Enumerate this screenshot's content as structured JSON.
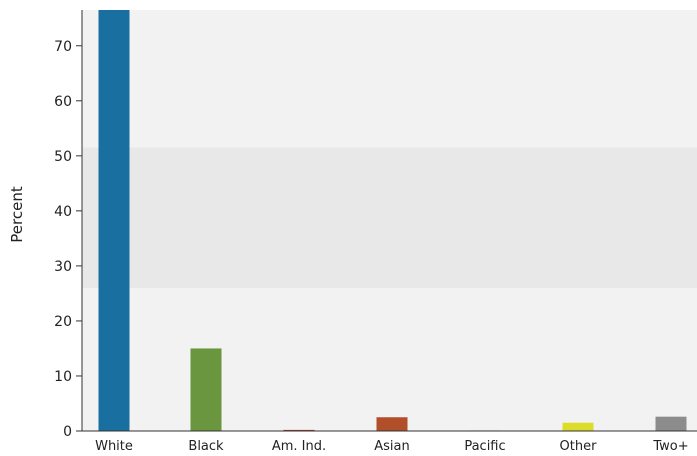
{
  "chart_data": {
    "type": "bar",
    "title": "",
    "xlabel": "",
    "ylabel": "Percent",
    "ylim": [
      0,
      76.5
    ],
    "yticks": [
      0,
      10,
      20,
      30,
      40,
      50,
      60,
      70
    ],
    "categories": [
      "White",
      "Black",
      "Am. Ind.",
      "Asian",
      "Pacific",
      "Other",
      "Two+"
    ],
    "values": [
      76.5,
      15.0,
      0.2,
      2.5,
      0.1,
      1.5,
      2.6
    ],
    "colors": [
      "#1a6fa1",
      "#6a963f",
      "#a53a2a",
      "#b04f2a",
      "#888888",
      "#dcdc2a",
      "#8c8c8c"
    ],
    "background_band_range": [
      26,
      51.5
    ],
    "plot_background": "#f2f2f2",
    "band_color": "#e8e8e8",
    "grid": false
  }
}
